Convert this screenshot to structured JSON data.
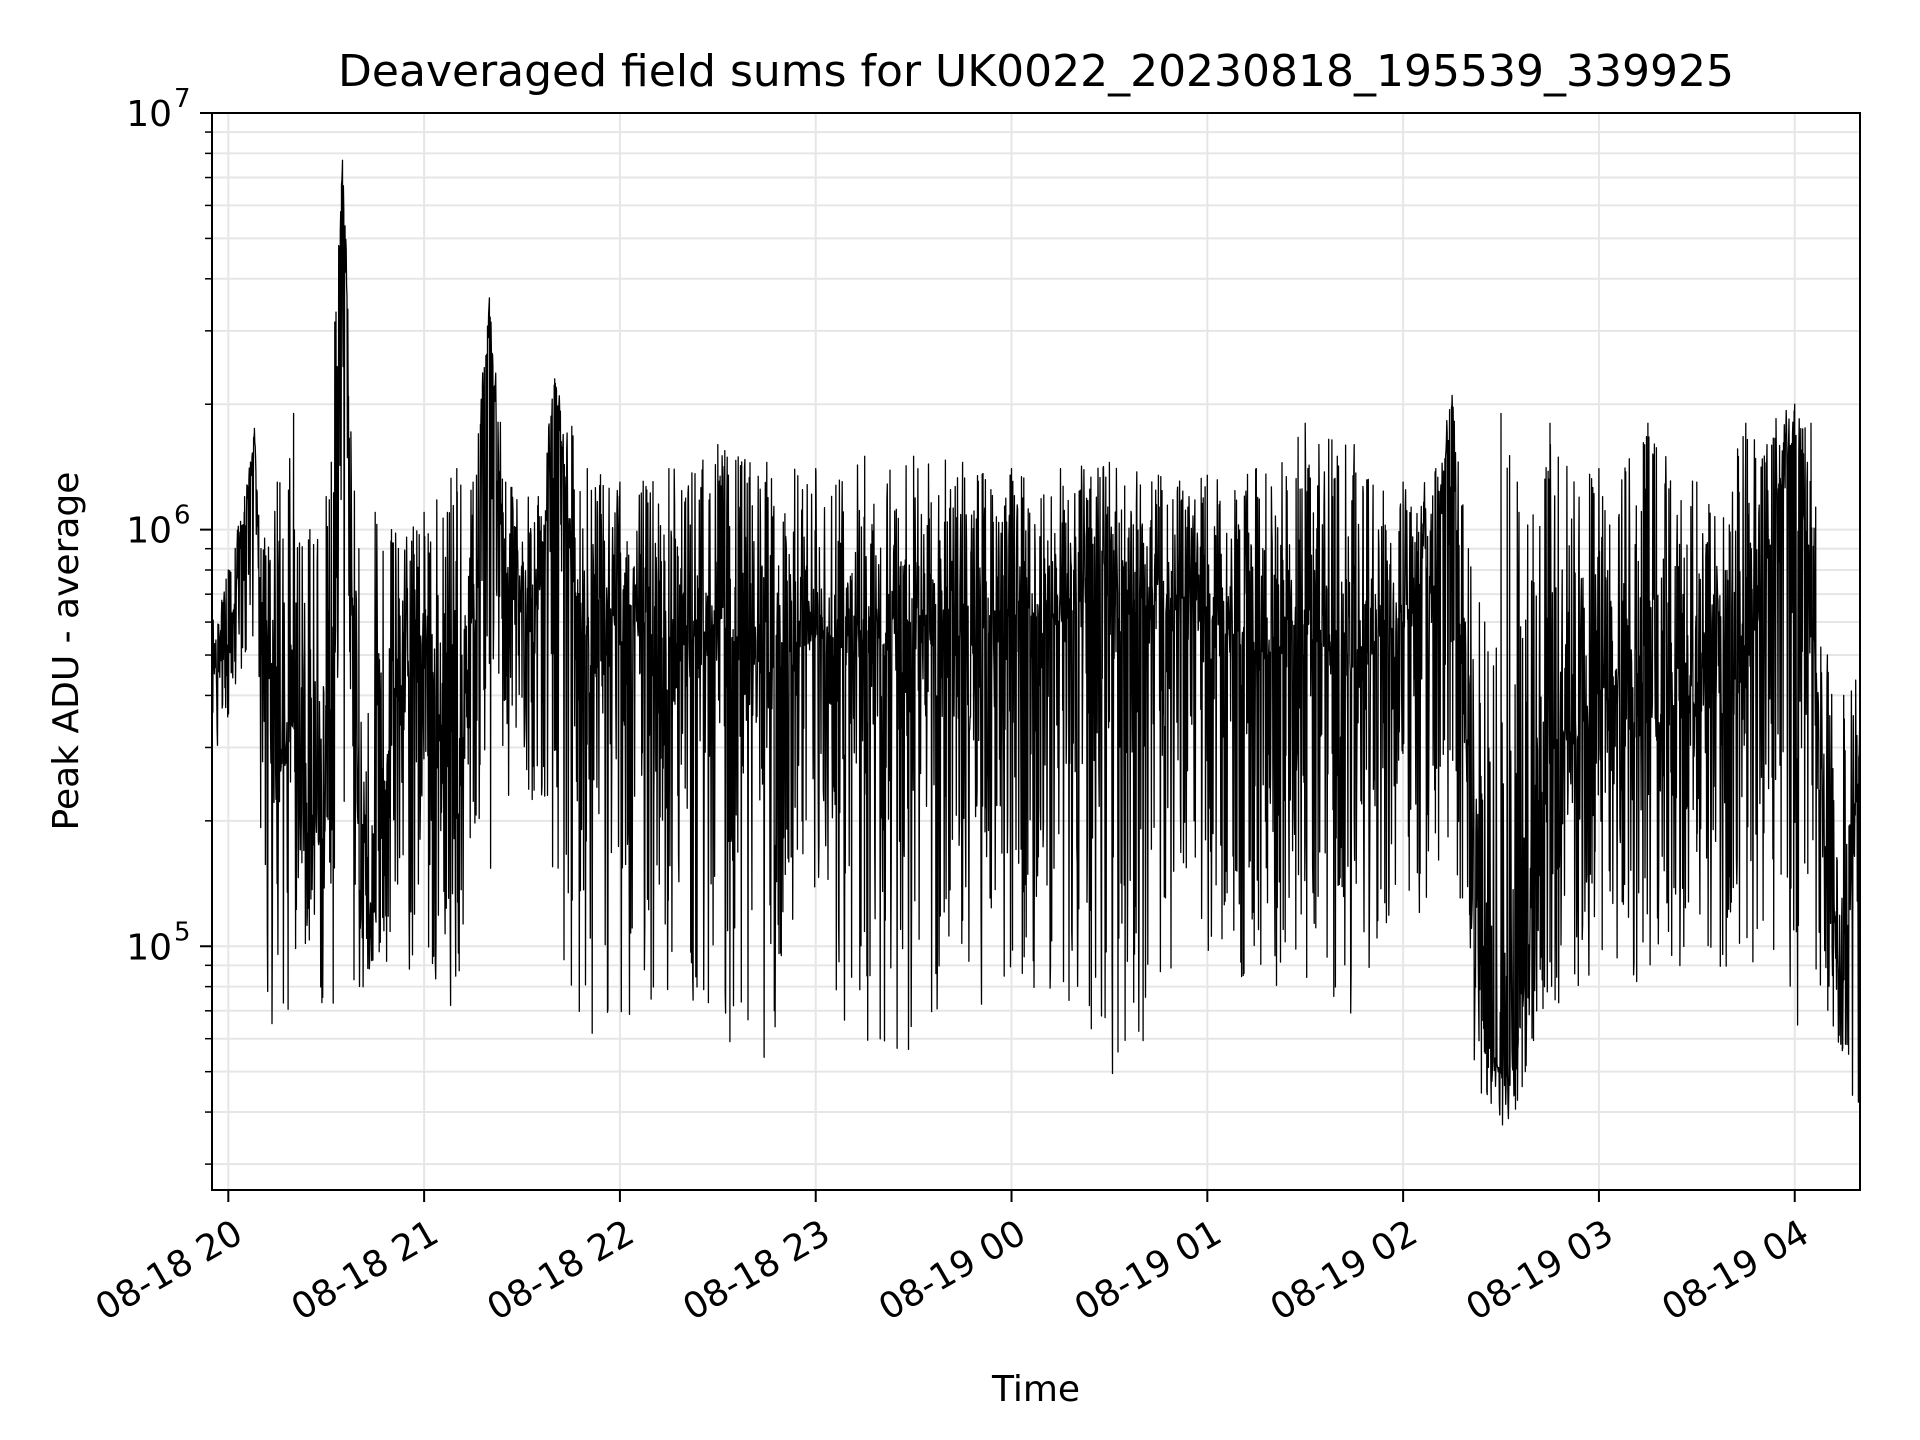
{
  "chart_data": {
    "type": "line",
    "title": "Deaveraged field sums for UK0022_20230818_195539_339925",
    "xlabel": "Time",
    "ylabel": "Peak ADU - average",
    "yscale": "log",
    "ylim": [
      26000,
      10000000
    ],
    "xlim": [
      "2023-08-18 19:55",
      "2023-08-19 04:20"
    ],
    "grid": true,
    "line_color": "#000000",
    "grid_color": "#e6e6e6",
    "x_ticks": [
      {
        "value": "2023-08-18 20:00",
        "label": "08-18 20"
      },
      {
        "value": "2023-08-18 21:00",
        "label": "08-18 21"
      },
      {
        "value": "2023-08-18 22:00",
        "label": "08-18 22"
      },
      {
        "value": "2023-08-18 23:00",
        "label": "08-18 23"
      },
      {
        "value": "2023-08-19 00:00",
        "label": "08-19 00"
      },
      {
        "value": "2023-08-19 01:00",
        "label": "08-19 01"
      },
      {
        "value": "2023-08-19 02:00",
        "label": "08-19 02"
      },
      {
        "value": "2023-08-19 03:00",
        "label": "08-19 03"
      },
      {
        "value": "2023-08-19 04:00",
        "label": "08-19 04"
      }
    ],
    "y_ticks": [
      {
        "value": 100000,
        "base": "10",
        "exp": "5"
      },
      {
        "value": 1000000,
        "base": "10",
        "exp": "6"
      },
      {
        "value": 10000000,
        "base": "10",
        "exp": "7"
      }
    ],
    "series": [
      {
        "x": [
          "2023-08-18 19:55",
          "2023-08-18 20:00",
          "2023-08-18 20:05",
          "2023-08-18 20:08",
          "2023-08-18 20:10",
          "2023-08-18 20:15",
          "2023-08-18 20:20",
          "2023-08-18 20:25",
          "2023-08-18 20:30",
          "2023-08-18 20:35",
          "2023-08-18 20:40",
          "2023-08-18 20:45",
          "2023-08-18 20:50",
          "2023-08-18 21:00",
          "2023-08-18 21:10",
          "2023-08-18 21:15",
          "2023-08-18 21:20",
          "2023-08-18 21:25",
          "2023-08-18 21:35",
          "2023-08-18 21:40",
          "2023-08-18 21:50",
          "2023-08-18 22:00",
          "2023-08-18 22:15",
          "2023-08-18 22:30",
          "2023-08-18 22:45",
          "2023-08-18 23:00",
          "2023-08-18 23:15",
          "2023-08-18 23:30",
          "2023-08-18 23:45",
          "2023-08-19 00:00",
          "2023-08-19 00:15",
          "2023-08-19 00:30",
          "2023-08-19 00:45",
          "2023-08-19 01:00",
          "2023-08-19 01:15",
          "2023-08-19 01:30",
          "2023-08-19 01:45",
          "2023-08-19 02:00",
          "2023-08-19 02:10",
          "2023-08-19 02:15",
          "2023-08-19 02:20",
          "2023-08-19 02:25",
          "2023-08-19 02:30",
          "2023-08-19 02:35",
          "2023-08-19 02:45",
          "2023-08-19 03:00",
          "2023-08-19 03:15",
          "2023-08-19 03:30",
          "2023-08-19 03:45",
          "2023-08-19 04:00",
          "2023-08-19 04:05",
          "2023-08-19 04:10",
          "2023-08-19 04:15",
          "2023-08-19 04:20"
        ],
        "y": [
          450000,
          500000,
          1000000,
          1700000,
          650000,
          250000,
          350000,
          200000,
          250000,
          7700000,
          150000,
          120000,
          350000,
          550000,
          200000,
          700000,
          3500000,
          700000,
          650000,
          2300000,
          400000,
          650000,
          500000,
          600000,
          450000,
          550000,
          500000,
          600000,
          550000,
          650000,
          600000,
          700000,
          650000,
          600000,
          500000,
          550000,
          500000,
          600000,
          800000,
          2000000,
          150000,
          60000,
          50000,
          55000,
          300000,
          400000,
          350000,
          400000,
          450000,
          1800000,
          700000,
          150000,
          80000,
          300000
        ],
        "y_max": [
          600000,
          800000,
          1200000,
          1750000,
          900000,
          1300000,
          1900000,
          1000000,
          1200000,
          7700000,
          900000,
          1100000,
          1000000,
          1100000,
          1400000,
          1300000,
          3600000,
          1300000,
          1200000,
          2300000,
          1400000,
          1300000,
          1400000,
          1600000,
          1450000,
          1400000,
          1500000,
          1500000,
          1450000,
          1400000,
          1400000,
          1450000,
          1350000,
          1350000,
          1400000,
          1800000,
          1600000,
          1300000,
          1400000,
          2100000,
          900000,
          600000,
          1900000,
          1300000,
          1800000,
          1400000,
          1800000,
          1300000,
          1800000,
          2000000,
          1800000,
          500000,
          400000,
          450000
        ],
        "y_min": [
          270000,
          350000,
          400000,
          550000,
          100000,
          50000,
          80000,
          90000,
          60000,
          90000,
          70000,
          85000,
          95000,
          80000,
          70000,
          190000,
          110000,
          230000,
          220000,
          105000,
          55000,
          65000,
          75000,
          60000,
          52000,
          90000,
          50000,
          55000,
          60000,
          85000,
          70000,
          48000,
          65000,
          90000,
          80000,
          75000,
          63000,
          95000,
          95000,
          100000,
          45000,
          38000,
          36000,
          40000,
          70000,
          80000,
          80000,
          85000,
          75000,
          60000,
          75000,
          70000,
          52000,
          33000
        ]
      }
    ]
  }
}
